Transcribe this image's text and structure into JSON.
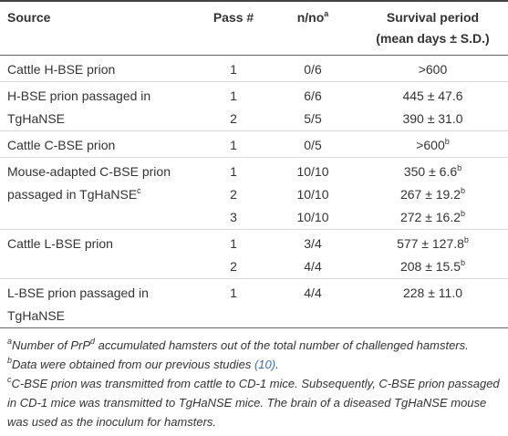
{
  "header": {
    "source": "Source",
    "pass": "Pass #",
    "n": {
      "text": "n/no",
      "sup": "a"
    },
    "survival": [
      "Survival period",
      "(mean days ± S.D.)"
    ]
  },
  "groups": [
    {
      "source": {
        "text": "Cattle H-BSE prion"
      },
      "rows": [
        {
          "pass": 1,
          "n": "0/6",
          "survival": {
            "text": ">600"
          }
        }
      ]
    },
    {
      "source": {
        "text": "H-BSE prion passaged in TgHaNSE"
      },
      "rows": [
        {
          "pass": 1,
          "n": "6/6",
          "survival": {
            "text": "445 ± 47.6"
          }
        },
        {
          "pass": 2,
          "n": "5/5",
          "survival": {
            "text": "390 ± 31.0"
          }
        }
      ]
    },
    {
      "source": {
        "text": "Cattle C-BSE prion"
      },
      "rows": [
        {
          "pass": 1,
          "n": "0/5",
          "survival": {
            "text": ">600",
            "sup": "b"
          }
        }
      ]
    },
    {
      "source": {
        "text": "Mouse-adapted C-BSE prion passaged in TgHaNSE",
        "sup": "c"
      },
      "rows": [
        {
          "pass": 1,
          "n": "10/10",
          "survival": {
            "text": "350 ± 6.6",
            "sup": "b"
          }
        },
        {
          "pass": 2,
          "n": "10/10",
          "survival": {
            "text": "267 ± 19.2",
            "sup": "b"
          }
        },
        {
          "pass": 3,
          "n": "10/10",
          "survival": {
            "text": "272 ± 16.2",
            "sup": "b"
          }
        }
      ]
    },
    {
      "source": {
        "text": "Cattle L-BSE prion"
      },
      "rows": [
        {
          "pass": 1,
          "n": "3/4",
          "survival": {
            "text": "577 ± 127.8",
            "sup": "b"
          }
        },
        {
          "pass": 2,
          "n": "4/4",
          "survival": {
            "text": "208 ± 15.5",
            "sup": "b"
          }
        }
      ]
    },
    {
      "source": {
        "text": "L-BSE prion passaged in TgHaNSE"
      },
      "rows": [
        {
          "pass": 1,
          "n": "4/4",
          "survival": {
            "text": "228 ± 11.0"
          }
        }
      ]
    }
  ],
  "footnotes": [
    {
      "mark": "a",
      "parts": [
        {
          "text": "Number of PrP"
        },
        {
          "sup": "d"
        },
        {
          "text": " accumulated hamsters out of the total number of challenged hamsters."
        }
      ]
    },
    {
      "mark": "b",
      "parts": [
        {
          "text": "Data were obtained from our previous studies "
        },
        {
          "link": "(10)"
        },
        {
          "text": "."
        }
      ]
    },
    {
      "mark": "c",
      "parts": [
        {
          "text": "C-BSE prion was transmitted from cattle to CD-1 mice. Subsequently, C-BSE prion passaged in CD-1 mice was transmitted to TgHaNSE mice. The brain of a diseased TgHaNSE mouse was used as the inoculum for hamsters."
        }
      ]
    }
  ]
}
